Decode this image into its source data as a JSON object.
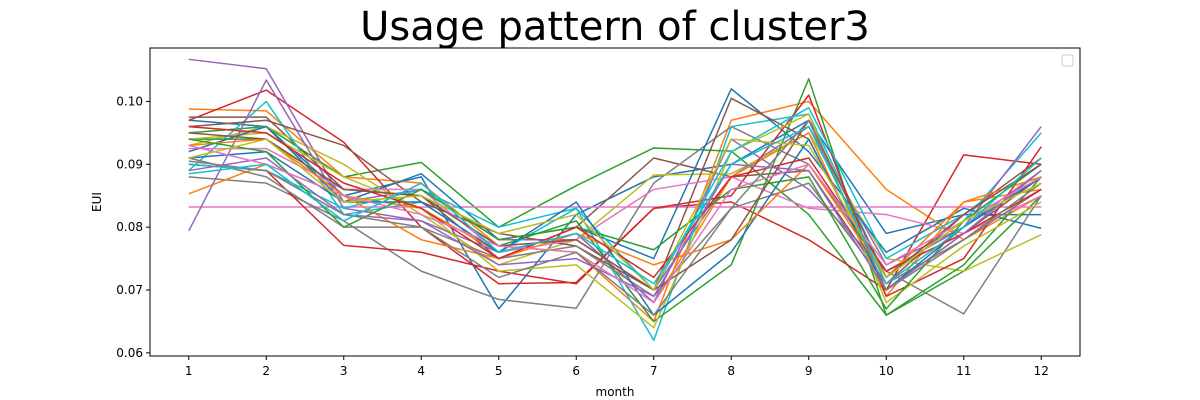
{
  "chart_data": {
    "type": "line",
    "title": "Usage pattern of cluster3",
    "xlabel": "month",
    "ylabel": "EUI",
    "x": [
      1,
      2,
      3,
      4,
      5,
      6,
      7,
      8,
      9,
      10,
      11,
      12
    ],
    "xlim": [
      0.5,
      12.5
    ],
    "ylim": [
      0.0595,
      0.1085
    ],
    "yticks": [
      "0.06",
      "0.07",
      "0.08",
      "0.09",
      "0.10"
    ],
    "grid": false,
    "legend": "top-right, empty",
    "colors": [
      "#1f77b4",
      "#ff7f0e",
      "#2ca02c",
      "#d62728",
      "#9467bd",
      "#8c564b",
      "#e377c2",
      "#7f7f7f",
      "#bcbd22",
      "#17becf"
    ],
    "series": [
      {
        "values": [
          0.097,
          0.096,
          0.085,
          0.088,
          0.067,
          0.082,
          0.088,
          0.09,
          0.097,
          0.079,
          0.082,
          0.082
        ]
      },
      {
        "values": [
          0.0988,
          0.0985,
          0.088,
          0.087,
          0.077,
          0.076,
          0.065,
          0.097,
          0.1,
          0.086,
          0.078,
          0.085
        ]
      },
      {
        "values": [
          0.095,
          0.096,
          0.088,
          0.0903,
          0.08,
          0.0866,
          0.0926,
          0.0921,
          0.082,
          0.066,
          0.073,
          0.085
        ]
      },
      {
        "values": [
          0.097,
          0.1018,
          0.0935,
          0.08,
          0.071,
          0.0712,
          0.083,
          0.084,
          0.078,
          0.07,
          0.0915,
          0.09
        ]
      },
      {
        "values": [
          0.1067,
          0.1052,
          0.084,
          0.086,
          0.078,
          0.078,
          0.07,
          0.088,
          0.096,
          0.074,
          0.08,
          0.089
        ]
      },
      {
        "values": [
          0.0975,
          0.0975,
          0.086,
          0.085,
          0.075,
          0.08,
          0.091,
          0.088,
          0.089,
          0.071,
          0.082,
          0.091
        ]
      },
      {
        "values": [
          0.0832,
          0.0832,
          0.0832,
          0.0832,
          0.0832,
          0.0832,
          0.0832,
          0.0832,
          0.0832,
          0.0832,
          0.0832,
          0.0832
        ]
      },
      {
        "values": [
          0.088,
          0.087,
          0.081,
          0.073,
          0.0685,
          0.0671,
          0.087,
          0.096,
          0.09,
          0.073,
          0.0662,
          0.085
        ]
      },
      {
        "values": [
          0.093,
          0.096,
          0.09,
          0.082,
          0.074,
          0.078,
          0.0883,
          0.0885,
          0.095,
          0.075,
          0.073,
          0.0788
        ]
      },
      {
        "values": [
          0.089,
          0.1,
          0.082,
          0.084,
          0.076,
          0.083,
          0.062,
          0.096,
          0.098,
          0.072,
          0.081,
          0.095
        ]
      },
      {
        "values": [
          0.091,
          0.092,
          0.084,
          0.0885,
          0.078,
          0.08,
          0.075,
          0.102,
          0.092,
          0.076,
          0.083,
          0.0798
        ]
      },
      {
        "values": [
          0.0853,
          0.09,
          0.085,
          0.083,
          0.076,
          0.079,
          0.068,
          0.088,
          0.095,
          0.069,
          0.084,
          0.086
        ]
      },
      {
        "values": [
          0.094,
          0.094,
          0.086,
          0.085,
          0.077,
          0.081,
          0.065,
          0.074,
          0.1036,
          0.066,
          0.074,
          0.088
        ]
      },
      {
        "values": [
          0.09,
          0.089,
          0.0771,
          0.076,
          0.073,
          0.071,
          0.083,
          0.085,
          0.101,
          0.069,
          0.075,
          0.0928
        ]
      },
      {
        "values": [
          0.0794,
          0.1034,
          0.083,
          0.081,
          0.076,
          0.079,
          0.068,
          0.094,
          0.086,
          0.073,
          0.08,
          0.096
        ]
      },
      {
        "values": [
          0.096,
          0.097,
          0.093,
          0.084,
          0.079,
          0.077,
          0.07,
          0.1005,
          0.094,
          0.07,
          0.079,
          0.088
        ]
      },
      {
        "values": [
          0.0925,
          0.0925,
          0.086,
          0.086,
          0.076,
          0.078,
          0.086,
          0.088,
          0.083,
          0.082,
          0.079,
          0.085
        ]
      },
      {
        "values": [
          0.091,
          0.088,
          0.08,
          0.08,
          0.075,
          0.077,
          0.069,
          0.083,
          0.087,
          0.071,
          0.078,
          0.086
        ]
      },
      {
        "values": [
          0.094,
          0.095,
          0.088,
          0.083,
          0.073,
          0.074,
          0.064,
          0.092,
          0.098,
          0.068,
          0.077,
          0.084
        ]
      },
      {
        "values": [
          0.09,
          0.089,
          0.083,
          0.086,
          0.08,
          0.083,
          0.07,
          0.092,
          0.099,
          0.075,
          0.082,
          0.09
        ]
      },
      {
        "values": [
          0.092,
          0.096,
          0.084,
          0.084,
          0.076,
          0.084,
          0.066,
          0.076,
          0.094,
          0.07,
          0.08,
          0.088
        ]
      },
      {
        "values": [
          0.093,
          0.094,
          0.085,
          0.078,
          0.075,
          0.079,
          0.074,
          0.078,
          0.09,
          0.072,
          0.084,
          0.088
        ]
      },
      {
        "values": [
          0.094,
          0.092,
          0.08,
          0.086,
          0.078,
          0.08,
          0.0764,
          0.086,
          0.088,
          0.067,
          0.081,
          0.09
        ]
      },
      {
        "values": [
          0.096,
          0.095,
          0.087,
          0.083,
          0.075,
          0.08,
          0.072,
          0.088,
          0.091,
          0.073,
          0.079,
          0.086
        ]
      },
      {
        "values": [
          0.089,
          0.091,
          0.082,
          0.081,
          0.074,
          0.075,
          0.069,
          0.09,
          0.089,
          0.07,
          0.079,
          0.089
        ]
      },
      {
        "values": [
          0.095,
          0.094,
          0.086,
          0.085,
          0.077,
          0.078,
          0.07,
          0.078,
          0.097,
          0.072,
          0.082,
          0.09
        ]
      },
      {
        "values": [
          0.093,
          0.09,
          0.085,
          0.082,
          0.077,
          0.076,
          0.068,
          0.086,
          0.09,
          0.074,
          0.081,
          0.088
        ]
      },
      {
        "values": [
          0.0905,
          0.089,
          0.082,
          0.08,
          0.072,
          0.076,
          0.066,
          0.083,
          0.097,
          0.07,
          0.078,
          0.087
        ]
      },
      {
        "values": [
          0.091,
          0.094,
          0.084,
          0.085,
          0.079,
          0.082,
          0.07,
          0.094,
          0.093,
          0.072,
          0.081,
          0.087
        ]
      },
      {
        "values": [
          0.0885,
          0.09,
          0.081,
          0.087,
          0.076,
          0.079,
          0.071,
          0.09,
          0.096,
          0.071,
          0.08,
          0.091
        ]
      }
    ]
  }
}
